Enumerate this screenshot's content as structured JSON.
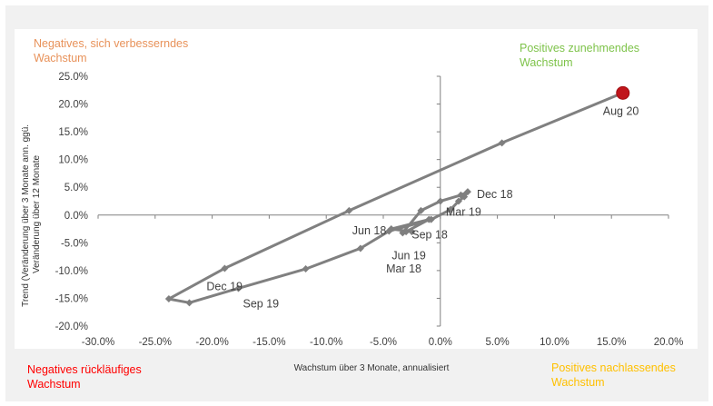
{
  "colors": {
    "line": "#808080",
    "marker": "#7f7f7f",
    "highlight": "#c0151b",
    "quad_tl": "#e8925a",
    "quad_tr": "#7ec34a",
    "quad_bl": "#ff0000",
    "quad_br": "#ffc000",
    "axis": "#808080",
    "text": "#404040"
  },
  "quadrants": {
    "top_left": [
      "Negatives, sich verbesserndes",
      "Wachstum"
    ],
    "top_right": [
      "Positives zunehmendes",
      "Wachstum"
    ],
    "bottom_left": [
      "Negatives rückläufiges",
      "Wachstum"
    ],
    "bottom_right": [
      "Positives nachlassendes",
      "Wachstum"
    ]
  },
  "chart_data": {
    "type": "line",
    "xlabel": "Wachstum über 3 Monate, annualisiert",
    "ylabel_lines": [
      "Trend (Veränderung über 3 Monate ann. ggü.",
      "Veränderung über 12 Monate"
    ],
    "xlim": [
      -30,
      20
    ],
    "ylim": [
      -20,
      25
    ],
    "x_ticks": [
      -30,
      -25,
      -20,
      -15,
      -10,
      -5,
      0,
      5,
      10,
      15,
      20
    ],
    "y_ticks": [
      -20,
      -15,
      -10,
      -5,
      0,
      5,
      10,
      15,
      20,
      25
    ],
    "x_tick_labels": [
      "-30.0%",
      "-25.0%",
      "-20.0%",
      "-15.0%",
      "-10.0%",
      "-5.0%",
      "0.0%",
      "5.0%",
      "10.0%",
      "15.0%",
      "20.0%"
    ],
    "y_tick_labels": [
      "-20.0%",
      "-15.0%",
      "-10.0%",
      "-5.0%",
      "0.0%",
      "5.0%",
      "10.0%",
      "15.0%",
      "20.0%",
      "25.0%"
    ],
    "grid": false,
    "series": [
      {
        "points": [
          [
            -2.5,
            -3.0
          ],
          [
            -4.3,
            -2.5
          ],
          [
            -1.0,
            -0.8
          ],
          [
            -3.0,
            -3.0
          ],
          [
            -3.3,
            -3.2
          ],
          [
            -1.7,
            0.8
          ],
          [
            0.0,
            2.5
          ],
          [
            1.8,
            3.6
          ],
          [
            2.4,
            4.2
          ],
          [
            2.1,
            3.3
          ],
          [
            1.6,
            2.5
          ],
          [
            0.9,
            1.0
          ],
          [
            -0.8,
            -0.8
          ],
          [
            -4.5,
            -2.9
          ],
          [
            -7.0,
            -6.0
          ],
          [
            -11.8,
            -9.7
          ],
          [
            -17.7,
            -13.2
          ],
          [
            -22.0,
            -15.8
          ],
          [
            -23.8,
            -15.1
          ],
          [
            -18.9,
            -9.6
          ],
          [
            -8.0,
            0.8
          ],
          [
            5.4,
            13.0
          ],
          [
            16.0,
            22.0
          ]
        ]
      }
    ],
    "annotations": [
      {
        "text": "Aug 20",
        "x": 16.0,
        "y": 22.0
      },
      {
        "text": "Dec 18",
        "x": 2.4,
        "y": 4.2
      },
      {
        "text": "Mar 19",
        "x": 1.6,
        "y": 2.5
      },
      {
        "text": "Sep 18",
        "x": -1.0,
        "y": -0.8
      },
      {
        "text": "Jun 18",
        "x": -4.3,
        "y": -2.5
      },
      {
        "text": "Jun 19",
        "x": -3.3,
        "y": -3.2
      },
      {
        "text": "Mar 18",
        "x": -3.0,
        "y": -3.0
      },
      {
        "text": "Dec 19",
        "x": -18.9,
        "y": -9.6
      },
      {
        "text": "Sep 19",
        "x": -17.7,
        "y": -13.2
      }
    ]
  }
}
